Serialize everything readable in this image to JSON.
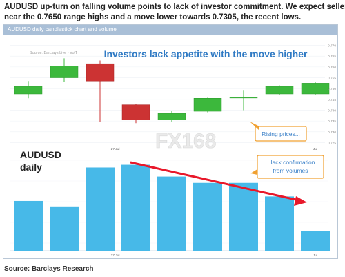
{
  "headline": {
    "line1": "AUDUSD up-turn on falling volume points to lack of investor commitment. We expect sellers to emerge",
    "line2": "near the 0.7650 range highs and a move lower towards 0.7305, the recent lows."
  },
  "panel": {
    "header": "AUDUSD daily candlestick chart and volume"
  },
  "footer": {
    "source": "Source: Barclays Research"
  },
  "watermark": {
    "text": "FX168"
  },
  "colors": {
    "up": "#3cb83c",
    "down": "#cc3333",
    "volume": "#47b9e8",
    "title_blue": "#2f7ac4",
    "arrow": "#e8182a",
    "callout": "#f0a030",
    "callout_text": "#3a80c8"
  },
  "chart_data": [
    {
      "type": "candlestick",
      "title": "Investors lack appetite with the move higher",
      "source_note": "Source: Barclays Live - VolT",
      "y_ticks": [
        "0.770",
        "0.765",
        "0.760",
        "0.755",
        "0.750",
        "0.745",
        "0.740",
        "0.735",
        "0.730",
        "0.725"
      ],
      "ylim": [
        0.7245,
        0.7705
      ],
      "x_tick_labels": [
        "27 Jul",
        "Jul"
      ],
      "candles": [
        {
          "open": 0.7475,
          "close": 0.751,
          "high": 0.7535,
          "low": 0.7455
        },
        {
          "open": 0.755,
          "close": 0.7605,
          "high": 0.764,
          "low": 0.753
        },
        {
          "open": 0.7615,
          "close": 0.7535,
          "high": 0.763,
          "low": 0.7345
        },
        {
          "open": 0.7425,
          "close": 0.7355,
          "high": 0.743,
          "low": 0.734
        },
        {
          "open": 0.7355,
          "close": 0.7385,
          "high": 0.7395,
          "low": 0.7345
        },
        {
          "open": 0.7395,
          "close": 0.7455,
          "high": 0.7458,
          "low": 0.739
        },
        {
          "open": 0.7458,
          "close": 0.746,
          "high": 0.749,
          "low": 0.74
        },
        {
          "open": 0.7475,
          "close": 0.751,
          "high": 0.7515,
          "low": 0.747
        },
        {
          "open": 0.7475,
          "close": 0.7525,
          "high": 0.753,
          "low": 0.747
        }
      ],
      "annotation": "Rising prices..."
    },
    {
      "type": "bar",
      "label_line1": "AUDUSD",
      "label_line2": "daily",
      "values": [
        0.55,
        0.49,
        0.92,
        0.95,
        0.82,
        0.75,
        0.75,
        0.6,
        0.22
      ],
      "ylim": [
        0,
        1
      ],
      "x_tick_labels": [
        "27 Jul",
        "Jul"
      ],
      "annotation_line1": "...lack confirmation",
      "annotation_line2": "from volumes"
    }
  ]
}
